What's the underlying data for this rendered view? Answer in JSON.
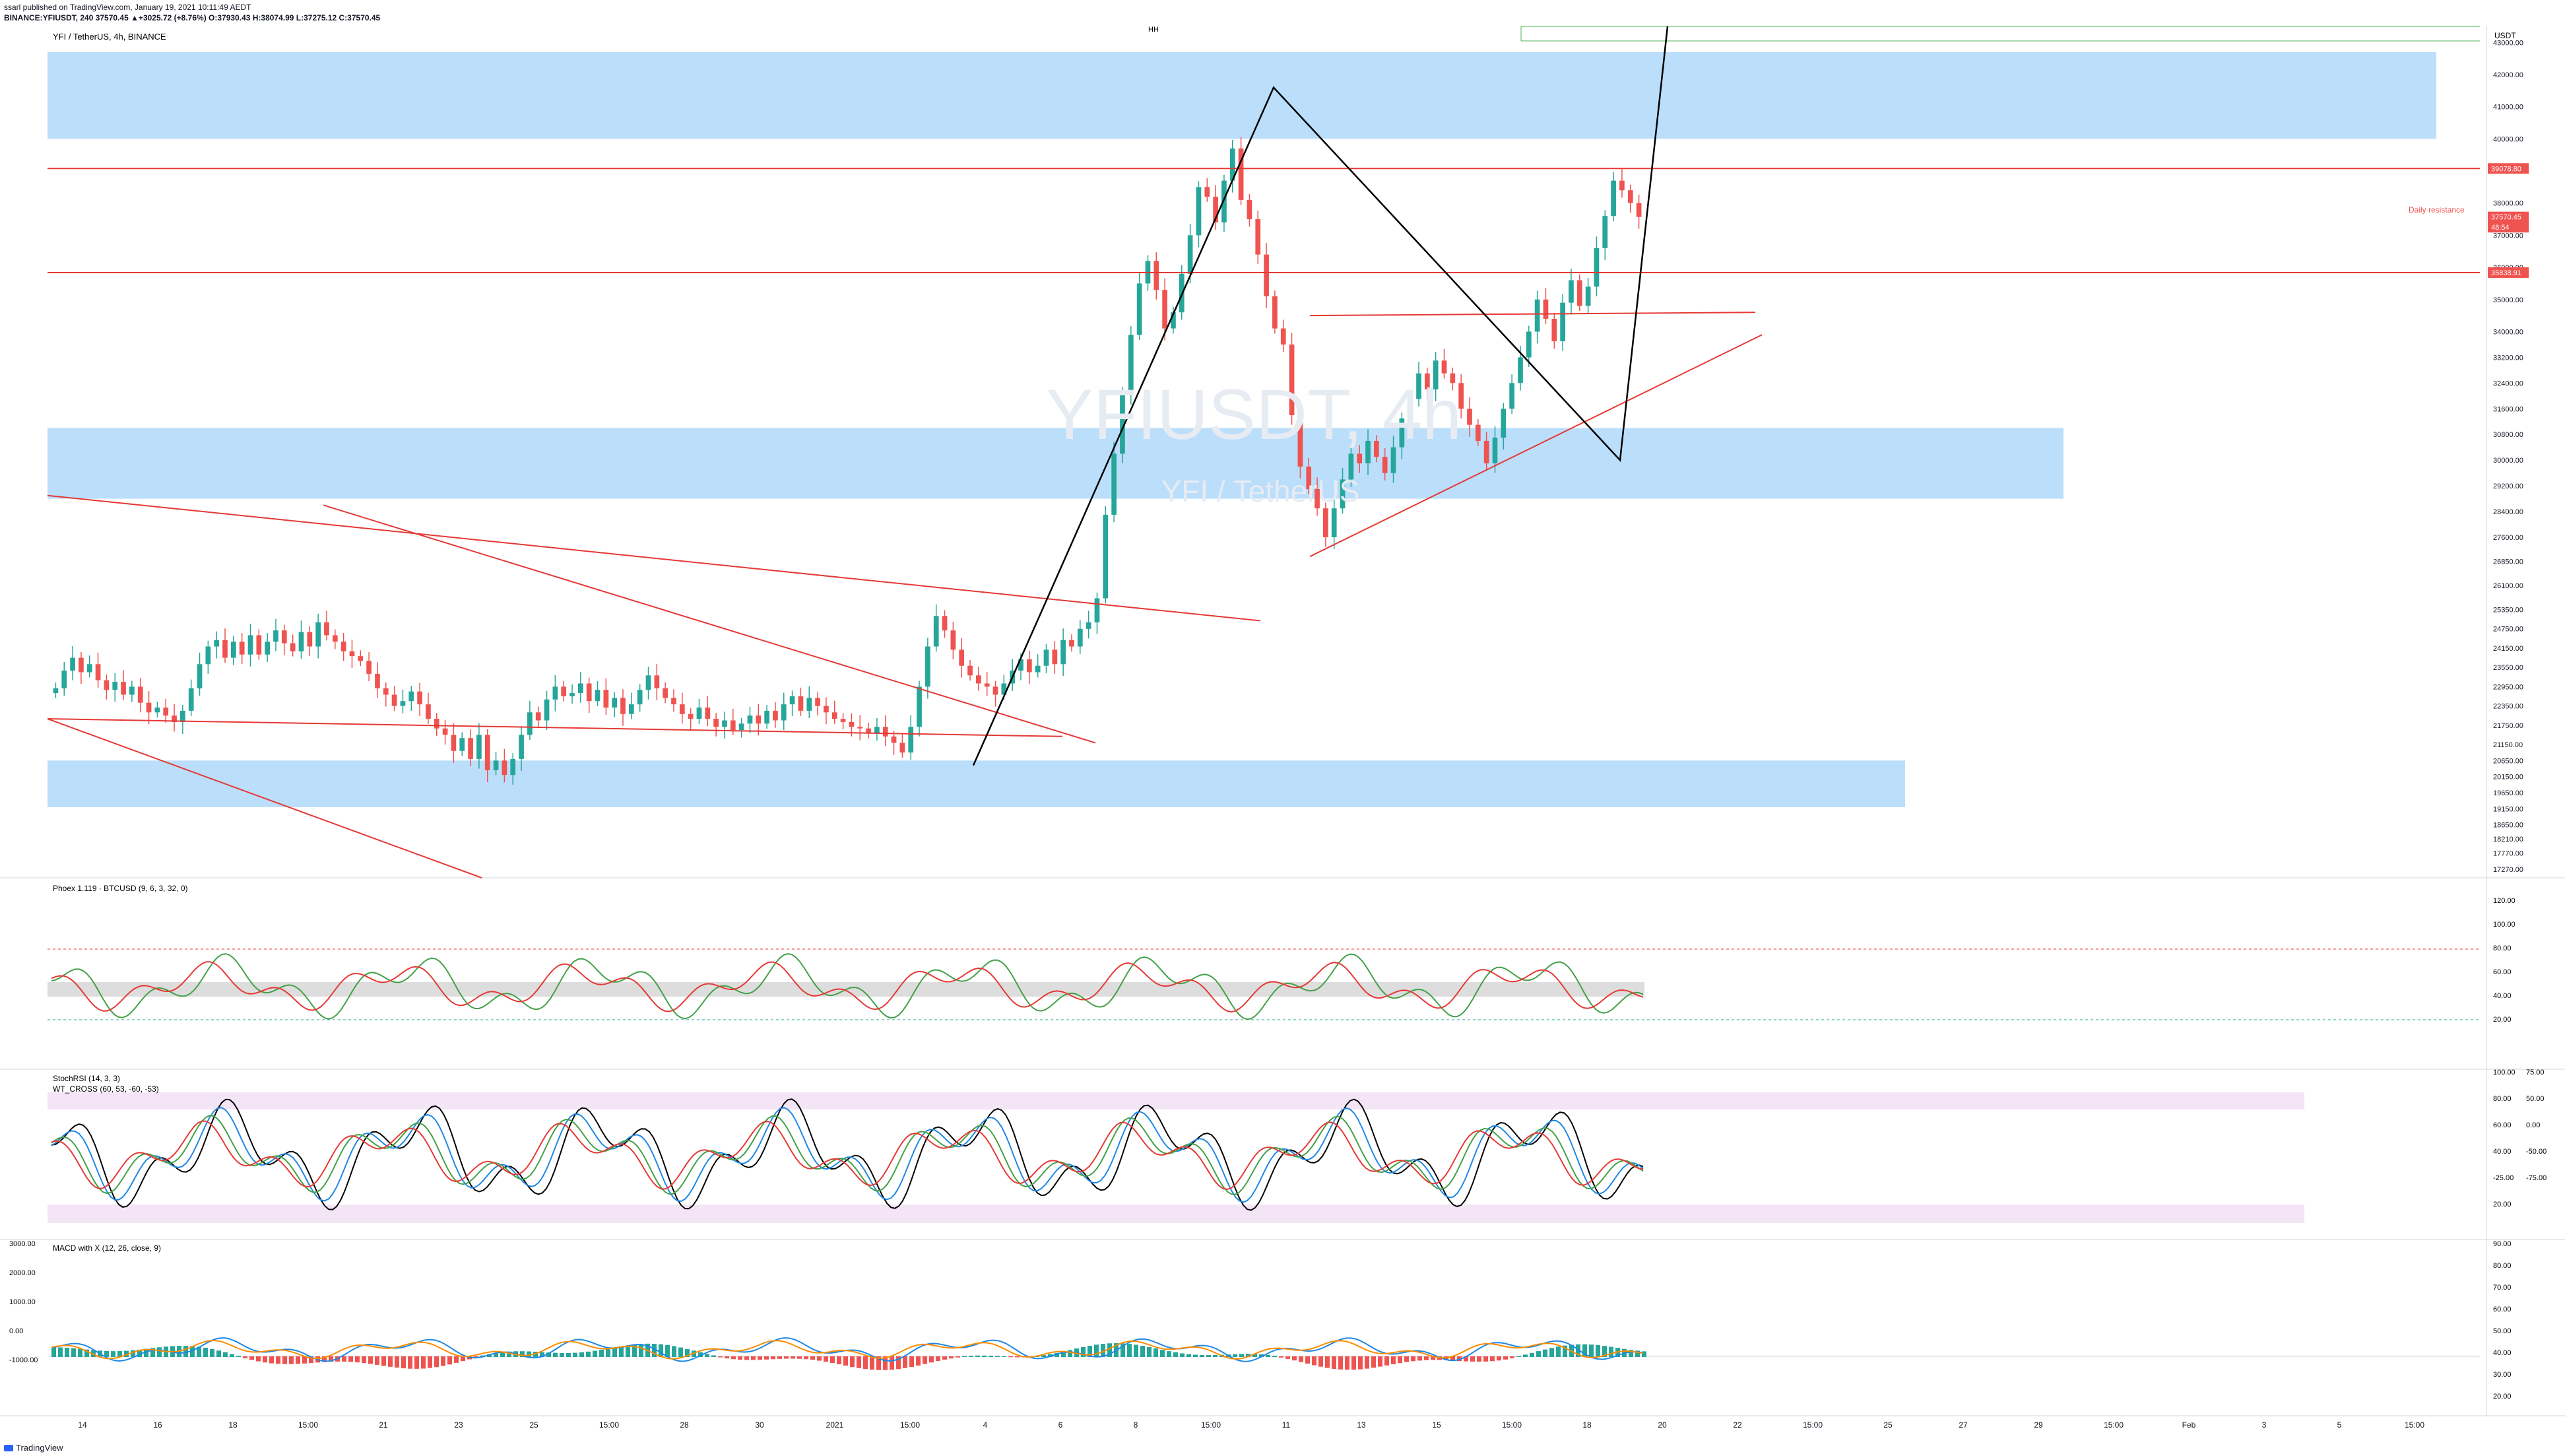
{
  "header": {
    "published": "ssarl published on TradingView.com, January 19, 2021 10:11:49 AEDT",
    "symbol_line": "BINANCE:YFIUSDT, 240  37570.45  ▲+3025.72 (+8.76%)  O:37930.43  H:38074.99  L:37275.12  C:37570.45"
  },
  "footer": {
    "brand": "TradingView"
  },
  "colors": {
    "up": "#26a69a",
    "down": "#ef5350",
    "zone": "#bbdefb",
    "trend": "#e53935",
    "black": "#000000"
  },
  "chart_data": [
    {
      "type": "candlestick",
      "title": "YFI / TetherUS, 4h, BINANCE",
      "watermark": "YFIUSDT, 4h",
      "watermark_sub": "YFI / TetherUS",
      "currency": "USDT",
      "ylim": [
        17000,
        43500
      ],
      "y_ticks": [
        17270,
        17770,
        18210,
        18650,
        19150,
        19650,
        20150,
        20650,
        21150,
        21750,
        22350,
        22950,
        23550,
        24150,
        24750,
        25350,
        26100,
        26850,
        27600,
        28400,
        29200,
        30000,
        30800,
        31600,
        32400,
        33200,
        34000,
        35000,
        36000,
        37000,
        38000,
        40000,
        41000,
        42000,
        43000
      ],
      "x_ticks": [
        "14",
        "16",
        "18",
        "15:00",
        "21",
        "23",
        "25",
        "15:00",
        "28",
        "30",
        "2021",
        "15:00",
        "4",
        "6",
        "8",
        "15:00",
        "11",
        "13",
        "15",
        "15:00",
        "18",
        "20",
        "22",
        "15:00",
        "25",
        "27",
        "29",
        "15:00",
        "Feb",
        "3",
        "5",
        "15:00"
      ],
      "candles_close": [
        22900,
        23450,
        23850,
        23400,
        23650,
        23150,
        22850,
        23100,
        22700,
        22950,
        22450,
        22150,
        22300,
        22050,
        21850,
        22200,
        22900,
        23650,
        24200,
        24400,
        23850,
        24350,
        23950,
        24550,
        23950,
        24350,
        24700,
        24300,
        24050,
        24650,
        24200,
        24950,
        24550,
        24350,
        24050,
        23900,
        23750,
        23350,
        22900,
        22700,
        22350,
        22500,
        22800,
        22400,
        21950,
        21650,
        21450,
        20950,
        21350,
        20700,
        21450,
        20350,
        20650,
        20200,
        20700,
        21450,
        22150,
        21900,
        22550,
        22950,
        22650,
        22750,
        23050,
        22500,
        22850,
        22300,
        22600,
        22100,
        22400,
        22850,
        23300,
        22900,
        22600,
        22400,
        22100,
        21950,
        22300,
        21950,
        21700,
        21900,
        21600,
        21800,
        22050,
        21800,
        22200,
        21900,
        22400,
        22650,
        22200,
        22600,
        22350,
        22150,
        21950,
        21850,
        21700,
        21650,
        21500,
        21700,
        21400,
        21200,
        20900,
        21700,
        22950,
        24200,
        25150,
        24700,
        24100,
        23600,
        23300,
        23050,
        22950,
        22700,
        23050,
        23450,
        23800,
        23400,
        23600,
        24100,
        23650,
        24400,
        24200,
        24750,
        24950,
        25700,
        28300,
        30200,
        32100,
        33900,
        35500,
        36200,
        35300,
        34100,
        34600,
        35800,
        37000,
        38500,
        38200,
        37400,
        38700,
        39700,
        38100,
        37500,
        36400,
        35100,
        34100,
        33600,
        31400,
        29800,
        29100,
        28500,
        27600,
        28500,
        29400,
        30200,
        29900,
        30600,
        30100,
        29600,
        30400,
        31300,
        31900,
        32700,
        32200,
        33100,
        32700,
        32400,
        31600,
        31100,
        30600,
        29900,
        30700,
        31600,
        32400,
        33200,
        34000,
        35000,
        34400,
        33700,
        34900,
        35600,
        34800,
        35400,
        36600,
        37600,
        38700,
        38400,
        38000,
        37570
      ],
      "indicator_labels": [
        {
          "title": "Phoex 1.119 · BTCUSD (9, 6, 3, 32, 0)",
          "ticks": [
            "120.00",
            "100.00",
            "80.00",
            "60.00",
            "40.00",
            "20.00"
          ]
        },
        {
          "title": "StochRSI (14, 3, 3)",
          "title2": "WT_CROSS (60, 53, -60, -53)",
          "ticks": [
            "100.00",
            "75.00",
            "80.00",
            "50.00",
            "60.00",
            "0.00",
            "40.00",
            "-50.00",
            "-25.00",
            "-75.00",
            "20.00"
          ]
        },
        {
          "title": "MACD with X (12, 26, close, 9)",
          "ticks": [
            "3000.00",
            "2000.00",
            "1000.00",
            "0.00",
            "-1000.00",
            "90.00",
            "80.00",
            "70.00",
            "60.00",
            "50.00",
            "40.00",
            "30.00",
            "20.00"
          ]
        }
      ],
      "price_labels": [
        {
          "value": "39078.80",
          "color": "#ef5350"
        },
        {
          "value": "37570.45",
          "color": "#ef5350"
        },
        {
          "value": "48:54",
          "color": "#ef5350"
        },
        {
          "value": "35838.91",
          "color": "#ef5350"
        }
      ],
      "annotations": [
        "Daily resistance",
        "HH"
      ]
    }
  ]
}
